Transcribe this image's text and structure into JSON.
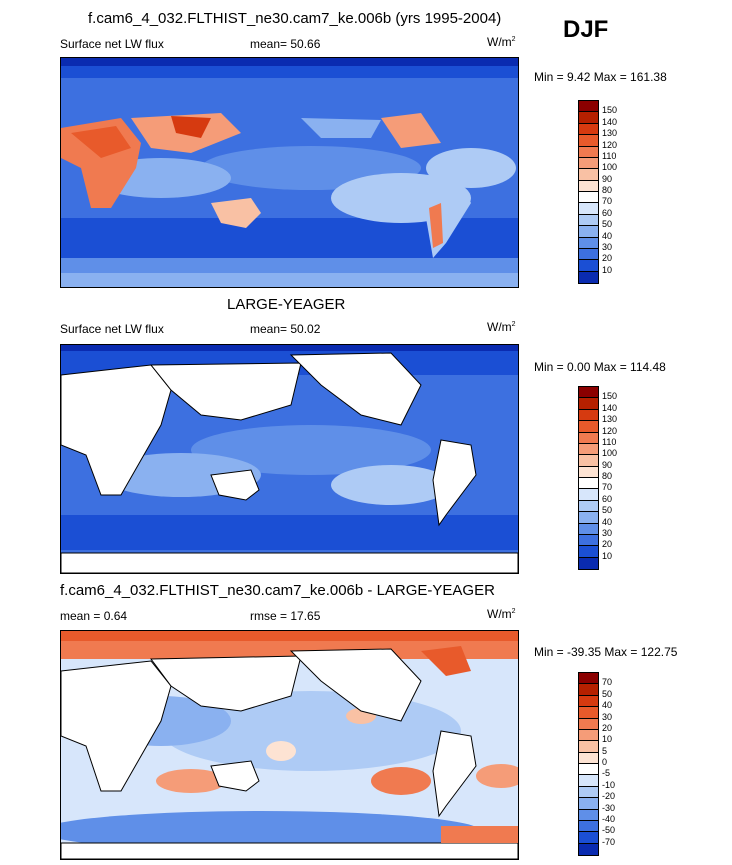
{
  "season": "DJF",
  "panels": [
    {
      "title": "f.cam6_4_032.FLTHIST_ne30.cam7_ke.006b (yrs 1995-2004)",
      "left_label": "Surface net LW flux",
      "center_label": "mean=  50.66",
      "units": "W/m",
      "units_sup": "2",
      "minmax": "Min =   9.42 Max = 161.38",
      "colorbar_ticks": [
        "150",
        "140",
        "130",
        "120",
        "110",
        "100",
        "90",
        "80",
        "70",
        "60",
        "50",
        "40",
        "30",
        "20",
        "10"
      ],
      "colorbar_colors": [
        "#8b0000",
        "#b52000",
        "#d63a10",
        "#e85a2b",
        "#f07a50",
        "#f59c78",
        "#f9c1a4",
        "#fde3d3",
        "#ffffff",
        "#d7e6fb",
        "#aecbf5",
        "#8ab1f0",
        "#5f8fe8",
        "#3d70e0",
        "#1b4fd4",
        "#0a2bb0"
      ]
    },
    {
      "title": "LARGE-YEAGER",
      "left_label": "Surface net LW flux",
      "center_label": "mean=  50.02",
      "units": "W/m",
      "units_sup": "2",
      "minmax": "Min =   0.00 Max = 114.48",
      "colorbar_ticks": [
        "150",
        "140",
        "130",
        "120",
        "110",
        "100",
        "90",
        "80",
        "70",
        "60",
        "50",
        "40",
        "30",
        "20",
        "10"
      ],
      "colorbar_colors": [
        "#8b0000",
        "#b52000",
        "#d63a10",
        "#e85a2b",
        "#f07a50",
        "#f59c78",
        "#f9c1a4",
        "#fde3d3",
        "#ffffff",
        "#d7e6fb",
        "#aecbf5",
        "#8ab1f0",
        "#5f8fe8",
        "#3d70e0",
        "#1b4fd4",
        "#0a2bb0"
      ]
    },
    {
      "title": "f.cam6_4_032.FLTHIST_ne30.cam7_ke.006b - LARGE-YEAGER",
      "left_label": "mean =   0.64",
      "center_label": "rmse =  17.65",
      "units": "W/m",
      "units_sup": "2",
      "minmax": "Min = -39.35 Max = 122.75",
      "colorbar_ticks": [
        "70",
        "50",
        "40",
        "30",
        "20",
        "10",
        "5",
        "0",
        "-5",
        "-10",
        "-20",
        "-30",
        "-40",
        "-50",
        "-70"
      ],
      "colorbar_colors": [
        "#8b0000",
        "#b52000",
        "#d63a10",
        "#e85a2b",
        "#f07a50",
        "#f59c78",
        "#f9c1a4",
        "#fde3d3",
        "#ffffff",
        "#d7e6fb",
        "#aecbf5",
        "#8ab1f0",
        "#5f8fe8",
        "#3d70e0",
        "#1b4fd4",
        "#0a2bb0"
      ]
    }
  ],
  "chart_data": [
    {
      "type": "heatmap",
      "title": "f.cam6_4_032.FLTHIST_ne30.cam7_ke.006b (yrs 1995-2004)",
      "variable": "Surface net LW flux",
      "mean": 50.66,
      "min": 9.42,
      "max": 161.38,
      "units": "W/m2",
      "levels": [
        10,
        20,
        30,
        40,
        50,
        60,
        70,
        80,
        90,
        100,
        110,
        120,
        130,
        140,
        150
      ]
    },
    {
      "type": "heatmap",
      "title": "LARGE-YEAGER",
      "variable": "Surface net LW flux",
      "mean": 50.02,
      "min": 0.0,
      "max": 114.48,
      "units": "W/m2",
      "levels": [
        10,
        20,
        30,
        40,
        50,
        60,
        70,
        80,
        90,
        100,
        110,
        120,
        130,
        140,
        150
      ]
    },
    {
      "type": "heatmap",
      "title": "f.cam6_4_032.FLTHIST_ne30.cam7_ke.006b - LARGE-YEAGER",
      "mean": 0.64,
      "rmse": 17.65,
      "min": -39.35,
      "max": 122.75,
      "units": "W/m2",
      "levels": [
        -70,
        -50,
        -40,
        -30,
        -20,
        -10,
        -5,
        0,
        5,
        10,
        20,
        30,
        40,
        50,
        70
      ]
    }
  ]
}
